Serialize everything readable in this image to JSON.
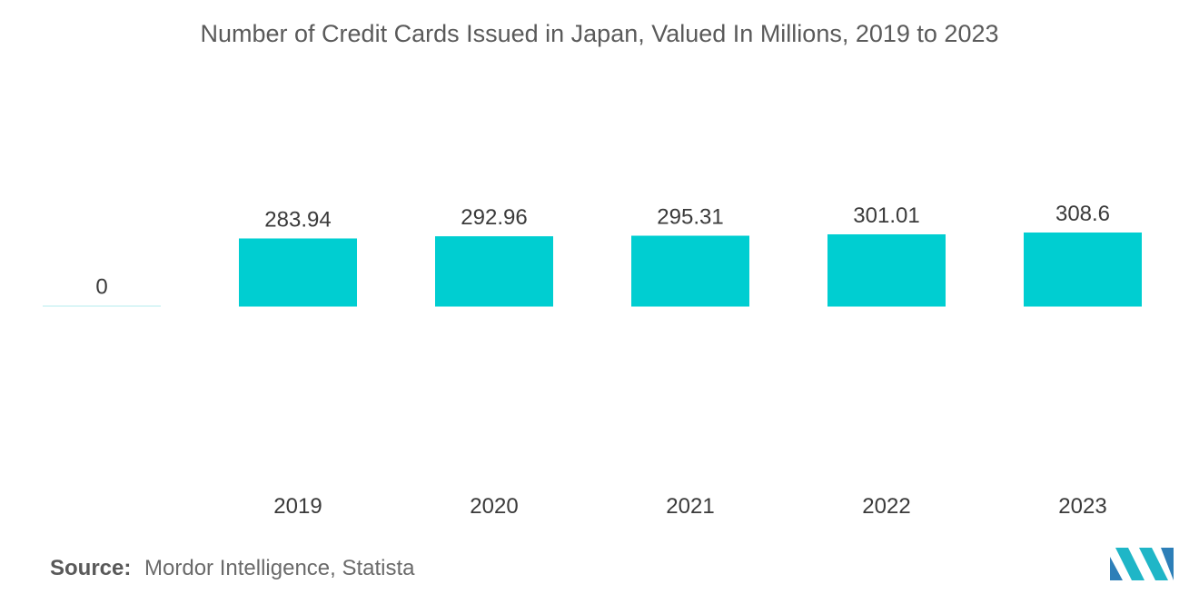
{
  "chart_data": {
    "type": "bar",
    "title": "Number of Credit Cards Issued in Japan, Valued In Millions,  2019 to 2023",
    "categories": [
      "",
      "2019",
      "2020",
      "2021",
      "2022",
      "2023"
    ],
    "values": [
      0,
      283.94,
      292.96,
      295.31,
      301.01,
      308.6
    ],
    "value_labels": [
      "0",
      "283.94",
      "292.96",
      "295.31",
      "301.01",
      "308.6"
    ],
    "xlabel": "",
    "ylabel": "",
    "ylim": [
      -600,
      308.6
    ],
    "grid": false,
    "bar_color": "#00CED1"
  },
  "source": {
    "label": "Source:",
    "text": "Mordor Intelligence, Statista"
  },
  "logo": {
    "icon": "mordor-intelligence-logo-icon"
  }
}
